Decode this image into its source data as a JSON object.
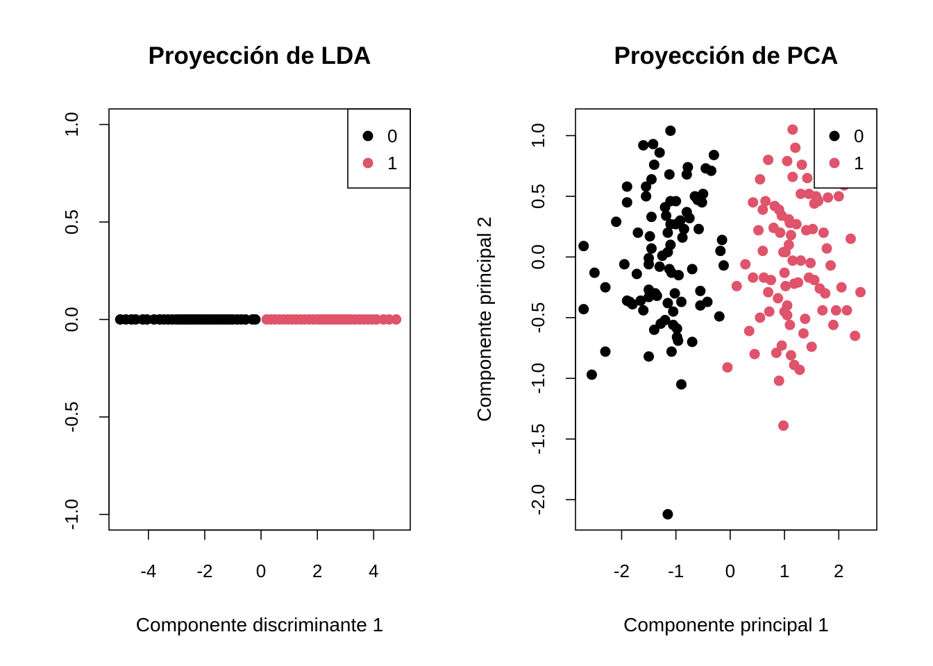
{
  "chart_data": [
    {
      "type": "scatter",
      "title": "Proyección de LDA",
      "xlabel": "Componente discriminante 1",
      "ylabel": "",
      "xlim": [
        -5.4,
        5.3
      ],
      "ylim": [
        -1.08,
        1.08
      ],
      "xticks": [
        -4,
        -2,
        0,
        2,
        4
      ],
      "xtick_labels": [
        "-4",
        "-2",
        "0",
        "2",
        "4"
      ],
      "yticks": [
        -1.0,
        -0.5,
        0.0,
        0.5,
        1.0
      ],
      "ytick_labels": [
        "-1.0",
        "-0.5",
        "0.0",
        "0.5",
        "1.0"
      ],
      "grid": false,
      "legend_position": "top-right",
      "colors": {
        "0": "#000000",
        "1": "#df536b"
      },
      "series": [
        {
          "name": "0",
          "color": "#000000",
          "x": [
            -5.0,
            -4.8,
            -4.6,
            -4.45,
            -4.2,
            -4.05,
            -3.8,
            -3.6,
            -3.45,
            -3.3,
            -3.15,
            -3.0,
            -2.9,
            -2.8,
            -2.7,
            -2.6,
            -2.5,
            -2.4,
            -2.3,
            -2.2,
            -2.1,
            -2.0,
            -1.9,
            -1.8,
            -1.7,
            -1.6,
            -1.5,
            -1.4,
            -1.3,
            -1.2,
            -1.1,
            -1.0,
            -0.85,
            -0.7,
            -0.55,
            -0.3,
            -0.2
          ],
          "y": [
            0,
            0,
            0,
            0,
            0,
            0,
            0,
            0,
            0,
            0,
            0,
            0,
            0,
            0,
            0,
            0,
            0,
            0,
            0,
            0,
            0,
            0,
            0,
            0,
            0,
            0,
            0,
            0,
            0,
            0,
            0,
            0,
            0,
            0,
            0,
            0,
            0
          ]
        },
        {
          "name": "1",
          "color": "#df536b",
          "x": [
            0.2,
            0.35,
            0.5,
            0.65,
            0.8,
            0.95,
            1.1,
            1.25,
            1.4,
            1.55,
            1.7,
            1.85,
            2.0,
            2.1,
            2.2,
            2.3,
            2.4,
            2.5,
            2.6,
            2.7,
            2.8,
            2.9,
            3.0,
            3.1,
            3.2,
            3.35,
            3.5,
            3.65,
            3.8,
            3.95,
            4.1,
            4.35,
            4.55,
            4.8
          ],
          "y": [
            0,
            0,
            0,
            0,
            0,
            0,
            0,
            0,
            0,
            0,
            0,
            0,
            0,
            0,
            0,
            0,
            0,
            0,
            0,
            0,
            0,
            0,
            0,
            0,
            0,
            0,
            0,
            0,
            0,
            0,
            0,
            0,
            0,
            0
          ]
        }
      ]
    },
    {
      "type": "scatter",
      "title": "Proyección de PCA",
      "xlabel": "Componente principal 1",
      "ylabel": "Componente principal 2",
      "xlim": [
        -2.85,
        2.7
      ],
      "ylim": [
        -2.25,
        1.22
      ],
      "xticks": [
        -2,
        -1,
        0,
        1,
        2
      ],
      "xtick_labels": [
        "-2",
        "-1",
        "0",
        "1",
        "2"
      ],
      "yticks": [
        -2.0,
        -1.5,
        -1.0,
        -0.5,
        0.0,
        0.5,
        1.0
      ],
      "ytick_labels": [
        "-2.0",
        "-1.5",
        "-1.0",
        "-0.5",
        "0.0",
        "0.5",
        "1.0"
      ],
      "grid": false,
      "legend_position": "top-right",
      "colors": {
        "0": "#000000",
        "1": "#df536b"
      },
      "series": [
        {
          "name": "0",
          "color": "#000000",
          "x": [
            -2.7,
            -2.7,
            -2.55,
            -2.5,
            -2.3,
            -2.3,
            -2.1,
            -1.95,
            -1.9,
            -1.9,
            -1.9,
            -1.85,
            -1.8,
            -1.72,
            -1.7,
            -1.65,
            -1.6,
            -1.6,
            -1.55,
            -1.55,
            -1.5,
            -1.5,
            -1.5,
            -1.5,
            -1.5,
            -1.48,
            -1.45,
            -1.45,
            -1.45,
            -1.42,
            -1.4,
            -1.4,
            -1.38,
            -1.35,
            -1.3,
            -1.3,
            -1.28,
            -1.25,
            -1.2,
            -1.2,
            -1.18,
            -1.15,
            -1.15,
            -1.15,
            -1.12,
            -1.12,
            -1.1,
            -1.1,
            -1.1,
            -1.1,
            -1.08,
            -1.08,
            -1.05,
            -1.05,
            -1.02,
            -1.0,
            -1.0,
            -0.98,
            -0.98,
            -0.96,
            -0.95,
            -0.92,
            -0.9,
            -0.9,
            -0.88,
            -0.85,
            -0.8,
            -0.8,
            -0.78,
            -0.75,
            -0.7,
            -0.7,
            -0.65,
            -0.6,
            -0.58,
            -0.55,
            -0.55,
            -0.52,
            -0.5,
            -0.45,
            -0.42,
            -0.35,
            -0.3,
            -0.2,
            -0.18,
            -0.15,
            -0.12,
            -1.15
          ],
          "y": [
            0.09,
            -0.43,
            -0.97,
            -0.13,
            -0.78,
            -0.25,
            0.29,
            -0.06,
            0.58,
            0.45,
            -0.36,
            -0.37,
            -0.39,
            -0.14,
            0.2,
            -0.36,
            0.92,
            -0.44,
            0.58,
            0.5,
            -0.27,
            -0.01,
            -0.06,
            -0.33,
            -0.82,
            0.17,
            0.07,
            0.64,
            0.33,
            0.93,
            0.76,
            -0.6,
            -0.3,
            -0.32,
            0.86,
            -0.08,
            -0.55,
            0.01,
            0.41,
            -0.52,
            0.34,
            0.04,
            -0.38,
            0.2,
            -0.1,
            0.68,
            1.04,
            0.46,
            0.27,
            0.1,
            -0.13,
            -0.78,
            -0.45,
            -0.56,
            -0.3,
            0.46,
            0.27,
            -0.59,
            -0.66,
            -0.69,
            -0.15,
            0.3,
            -0.37,
            -1.05,
            0.16,
            0.23,
            0.37,
            0.68,
            0.74,
            0.32,
            -0.7,
            -0.1,
            0.5,
            0.47,
            0.23,
            -0.28,
            -0.4,
            0.45,
            0.52,
            0.73,
            -0.37,
            0.71,
            0.84,
            -0.49,
            0.05,
            0.14,
            -0.07,
            -2.12
          ],
          "n_visible": 88
        },
        {
          "name": "1",
          "color": "#df536b",
          "x": [
            -0.05,
            0.12,
            0.28,
            0.35,
            0.42,
            0.42,
            0.45,
            0.52,
            0.55,
            0.55,
            0.6,
            0.6,
            0.62,
            0.65,
            0.7,
            0.7,
            0.72,
            0.75,
            0.8,
            0.82,
            0.85,
            0.88,
            0.9,
            0.9,
            0.92,
            0.95,
            0.95,
            0.98,
            1.0,
            1.0,
            1.02,
            1.02,
            1.05,
            1.05,
            1.05,
            1.08,
            1.08,
            1.1,
            1.1,
            1.12,
            1.12,
            1.15,
            1.15,
            1.15,
            1.18,
            1.18,
            1.2,
            1.22,
            1.25,
            1.28,
            1.3,
            1.3,
            1.32,
            1.35,
            1.38,
            1.4,
            1.42,
            1.45,
            1.45,
            1.48,
            1.5,
            1.52,
            1.55,
            1.55,
            1.58,
            1.6,
            1.62,
            1.65,
            1.68,
            1.7,
            1.72,
            1.75,
            1.78,
            1.8,
            1.85,
            1.9,
            1.95,
            2.0,
            2.05,
            2.1,
            2.15,
            2.22,
            2.3,
            2.4,
            0.98
          ],
          "y": [
            -0.91,
            -0.24,
            -0.06,
            -0.61,
            0.45,
            -0.17,
            -0.8,
            0.22,
            0.64,
            -0.5,
            0.05,
            0.39,
            -0.17,
            0.46,
            -0.29,
            0.8,
            -0.45,
            -0.19,
            0.24,
            0.42,
            -0.79,
            -0.34,
            0.39,
            -1.02,
            0.2,
            0.34,
            -0.73,
            0.04,
            -0.45,
            -0.13,
            0.04,
            -0.24,
            0.79,
            -0.48,
            -0.4,
            0.1,
            0.31,
            -0.56,
            0.28,
            0.18,
            -0.81,
            1.05,
            0.66,
            -0.03,
            -0.22,
            -0.89,
            0.9,
            0.27,
            -0.21,
            -0.93,
            0.52,
            -0.03,
            0.76,
            -0.63,
            -0.51,
            0.22,
            0.65,
            0.52,
            -0.17,
            -0.05,
            -0.74,
            0.23,
            0.44,
            -0.19,
            0.5,
            0.48,
            0.46,
            -0.26,
            0.69,
            -0.44,
            0.2,
            -0.3,
            0.07,
            0.49,
            -0.07,
            -0.56,
            -0.44,
            0.5,
            -0.25,
            0.59,
            -0.44,
            0.15,
            -0.65,
            -0.29,
            -1.39
          ]
        }
      ]
    }
  ]
}
